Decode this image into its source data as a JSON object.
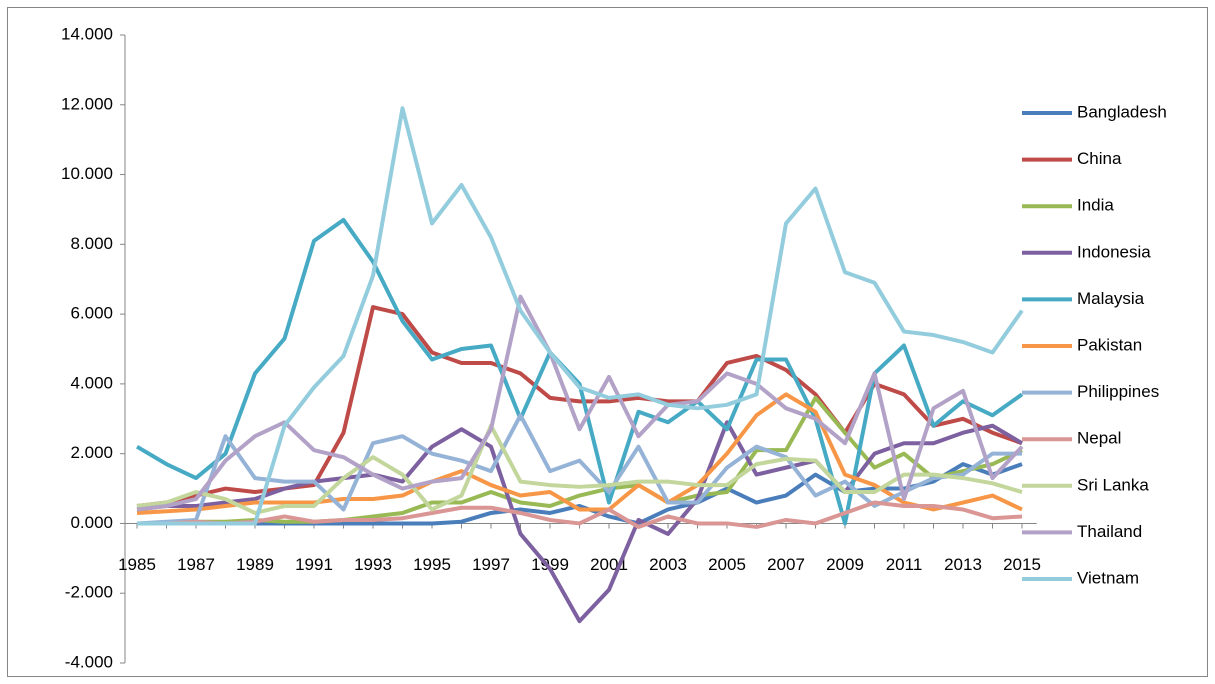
{
  "chart_data": {
    "type": "line",
    "categories": [
      "1985",
      null,
      "1987",
      null,
      "1989",
      null,
      "1991",
      null,
      "1993",
      null,
      "1995",
      null,
      "1997",
      null,
      "1999",
      null,
      "2001",
      null,
      "2003",
      null,
      "2005",
      null,
      "2007",
      null,
      "2009",
      null,
      "2011",
      null,
      "2013",
      null,
      "2015"
    ],
    "ylim": [
      -4,
      14
    ],
    "yticks": [
      {
        "value": -4,
        "label": "-4.000"
      },
      {
        "value": -2,
        "label": "-2.000"
      },
      {
        "value": 0,
        "label": "0.000"
      },
      {
        "value": 2,
        "label": "2.000"
      },
      {
        "value": 4,
        "label": "4.000"
      },
      {
        "value": 6,
        "label": "6.000"
      },
      {
        "value": 8,
        "label": "8.000"
      },
      {
        "value": 10,
        "label": "10.000"
      },
      {
        "value": 12,
        "label": "12.000"
      },
      {
        "value": 14,
        "label": "14.000"
      }
    ],
    "grid": false,
    "legend": "right",
    "series": [
      {
        "name": "Bangladesh",
        "color": "#4a7ebb",
        "values": [
          0.0,
          0.0,
          0.0,
          0.0,
          0.0,
          0.0,
          0.0,
          0.0,
          0.0,
          0.0,
          0.0,
          0.05,
          0.3,
          0.4,
          0.3,
          0.5,
          0.2,
          0.0,
          0.4,
          0.6,
          1.0,
          0.6,
          0.8,
          1.4,
          0.9,
          1.0,
          1.0,
          1.2,
          1.7,
          1.4,
          1.7
        ]
      },
      {
        "name": "China",
        "color": "#be4b48",
        "values": [
          0.5,
          0.6,
          0.8,
          1.0,
          0.9,
          1.0,
          1.1,
          2.6,
          6.2,
          6.0,
          4.9,
          4.6,
          4.6,
          4.3,
          3.6,
          3.5,
          3.5,
          3.6,
          3.5,
          3.5,
          4.6,
          4.8,
          4.4,
          3.7,
          2.6,
          4.0,
          3.7,
          2.8,
          3.0,
          2.6,
          2.3
        ]
      },
      {
        "name": "India",
        "color": "#98b954",
        "values": [
          0.0,
          0.0,
          0.05,
          0.05,
          0.1,
          0.05,
          0.05,
          0.1,
          0.2,
          0.3,
          0.6,
          0.6,
          0.9,
          0.6,
          0.5,
          0.8,
          1.0,
          1.1,
          0.6,
          0.8,
          0.9,
          2.1,
          2.1,
          3.6,
          2.6,
          1.6,
          2.0,
          1.3,
          1.5,
          1.7,
          2.1
        ]
      },
      {
        "name": "Indonesia",
        "color": "#7d60a0",
        "values": [
          0.4,
          0.5,
          0.5,
          0.6,
          0.7,
          1.0,
          1.2,
          1.3,
          1.4,
          1.2,
          2.2,
          2.7,
          2.2,
          -0.3,
          -1.3,
          -2.8,
          -1.9,
          0.1,
          -0.3,
          0.7,
          2.9,
          1.4,
          1.6,
          1.8,
          0.9,
          2.0,
          2.3,
          2.3,
          2.6,
          2.8,
          2.3
        ]
      },
      {
        "name": "Malaysia",
        "color": "#46aac5",
        "values": [
          2.2,
          1.7,
          1.3,
          2.0,
          4.3,
          5.3,
          8.1,
          8.7,
          7.5,
          5.8,
          4.7,
          5.0,
          5.1,
          3.0,
          4.9,
          4.0,
          0.6,
          3.2,
          2.9,
          3.5,
          2.7,
          4.7,
          4.7,
          3.0,
          0.0,
          4.3,
          5.1,
          2.8,
          3.5,
          3.1,
          3.7
        ]
      },
      {
        "name": "Pakistan",
        "color": "#f79646",
        "values": [
          0.3,
          0.35,
          0.4,
          0.5,
          0.6,
          0.6,
          0.6,
          0.7,
          0.7,
          0.8,
          1.2,
          1.5,
          1.1,
          0.8,
          0.9,
          0.4,
          0.4,
          1.1,
          0.6,
          1.1,
          2.0,
          3.1,
          3.7,
          3.2,
          1.4,
          1.1,
          0.6,
          0.4,
          0.6,
          0.8,
          0.4
        ]
      },
      {
        "name": "Philippines",
        "color": "#95b3d7",
        "values": [
          0.0,
          0.05,
          0.1,
          2.5,
          1.3,
          1.2,
          1.2,
          0.4,
          2.3,
          2.5,
          2.0,
          1.8,
          1.5,
          3.1,
          1.5,
          1.8,
          0.9,
          2.2,
          0.6,
          0.6,
          1.6,
          2.2,
          1.9,
          0.8,
          1.2,
          0.5,
          0.9,
          1.3,
          1.4,
          2.0,
          2.0
        ]
      },
      {
        "name": "Nepal",
        "color": "#d99694",
        "values": [
          0.0,
          0.0,
          0.05,
          0.0,
          0.05,
          0.2,
          0.05,
          0.1,
          0.1,
          0.15,
          0.3,
          0.45,
          0.45,
          0.3,
          0.1,
          0.0,
          0.4,
          -0.1,
          0.2,
          0.0,
          0.0,
          -0.1,
          0.1,
          0.0,
          0.3,
          0.6,
          0.5,
          0.5,
          0.4,
          0.15,
          0.2
        ]
      },
      {
        "name": "Sri Lanka",
        "color": "#c3d69b",
        "values": [
          0.5,
          0.6,
          0.9,
          0.7,
          0.3,
          0.5,
          0.5,
          1.3,
          1.9,
          1.4,
          0.4,
          0.8,
          2.8,
          1.2,
          1.1,
          1.05,
          1.1,
          1.2,
          1.2,
          1.1,
          1.1,
          1.7,
          1.85,
          1.8,
          0.9,
          0.9,
          1.4,
          1.4,
          1.3,
          1.15,
          0.9
        ]
      },
      {
        "name": "Thailand",
        "color": "#b3a2c7",
        "values": [
          0.4,
          0.5,
          0.7,
          1.8,
          2.5,
          2.9,
          2.1,
          1.9,
          1.4,
          1.0,
          1.2,
          1.3,
          2.7,
          6.5,
          4.9,
          2.7,
          4.2,
          2.5,
          3.4,
          3.5,
          4.3,
          4.0,
          3.3,
          3.0,
          2.3,
          4.3,
          0.7,
          3.3,
          3.8,
          1.3,
          2.2
        ]
      },
      {
        "name": "Vietnam",
        "color": "#93cddd",
        "values": [
          0.0,
          0.0,
          0.0,
          0.0,
          0.0,
          2.8,
          3.9,
          4.8,
          7.1,
          11.9,
          8.6,
          9.7,
          8.2,
          6.1,
          4.9,
          3.9,
          3.6,
          3.7,
          3.4,
          3.3,
          3.4,
          3.7,
          8.6,
          9.6,
          7.2,
          6.9,
          5.5,
          5.4,
          5.2,
          4.9,
          6.1
        ]
      }
    ]
  }
}
